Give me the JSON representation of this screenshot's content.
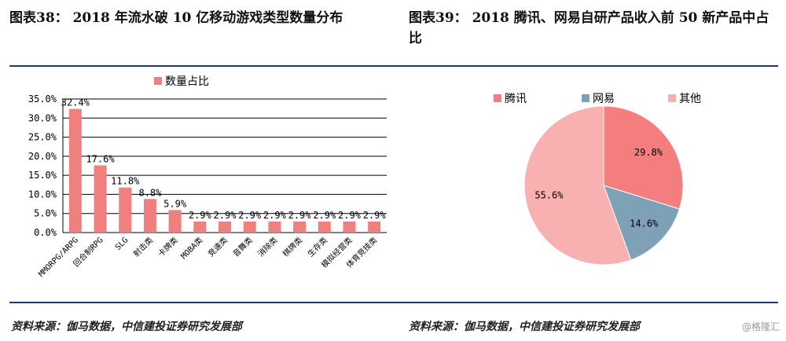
{
  "left_title": "图表38： 2018 年流水破 10 亿移动游戏类型数量分布",
  "right_title": "图表39： 2018 腾讯、网易自研产品收入前 50 新产品中占比",
  "left_source": "资料来源：伽马数据，中信建投证券研究发展部",
  "right_source": "资料来源：伽马数据，中信建投证券研究发展部",
  "watermark": "@格隆汇",
  "chart_data": [
    {
      "type": "bar",
      "title": "",
      "xlabel": "",
      "ylabel": "",
      "legend": {
        "position": "top",
        "entries": [
          "数量占比"
        ]
      },
      "categories": [
        "MMORPG/ARPG",
        "回合制RPG",
        "SLG",
        "射击类",
        "卡牌类",
        "MOBA类",
        "竞速类",
        "音舞类",
        "消除类",
        "棋牌类",
        "生存类",
        "模拟经营类",
        "体育竞技类"
      ],
      "series": [
        {
          "name": "数量占比",
          "color": "#f08080",
          "values": [
            32.4,
            17.6,
            11.8,
            8.8,
            5.9,
            2.9,
            2.9,
            2.9,
            2.9,
            2.9,
            2.9,
            2.9,
            2.9
          ],
          "data_labels": [
            "32.4%",
            "17.6%",
            "11.8%",
            "8.8%",
            "5.9%",
            "2.9%",
            "2.9%",
            "2.9%",
            "2.9%",
            "2.9%",
            "2.9%",
            "2.9%",
            "2.9%"
          ]
        }
      ],
      "ylim": [
        0,
        35
      ],
      "y_ticks": [
        0,
        5,
        10,
        15,
        20,
        25,
        30,
        35
      ],
      "y_tick_labels": [
        "0.0%",
        "5.0%",
        "10.0%",
        "15.0%",
        "20.0%",
        "25.0%",
        "30.0%",
        "35.0%"
      ],
      "grid": true
    },
    {
      "type": "pie",
      "title": "",
      "legend": {
        "position": "top"
      },
      "slices": [
        {
          "name": "腾讯",
          "value": 29.8,
          "label": "29.8%",
          "color": "#f47e7e"
        },
        {
          "name": "网易",
          "value": 14.6,
          "label": "14.6%",
          "color": "#7fa1b8"
        },
        {
          "name": "其他",
          "value": 55.6,
          "label": "55.6%",
          "color": "#f9b0b0"
        }
      ]
    }
  ]
}
